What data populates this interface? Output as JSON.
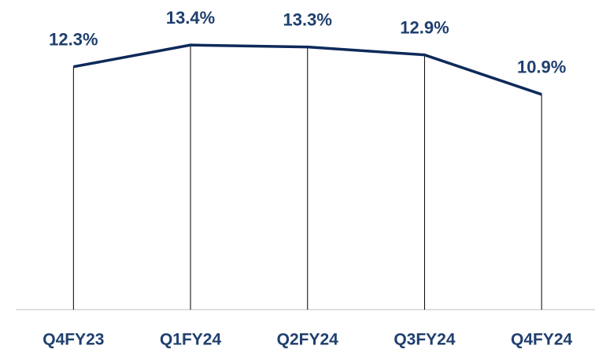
{
  "chart_data": {
    "type": "line",
    "categories": [
      "Q4FY23",
      "Q1FY24",
      "Q2FY24",
      "Q3FY24",
      "Q4FY24"
    ],
    "values": [
      12.3,
      13.4,
      13.3,
      12.9,
      10.9
    ],
    "value_labels": [
      "12.3%",
      "13.4%",
      "13.3%",
      "12.9%",
      "10.9%"
    ],
    "color": "#0e2a5a",
    "ylim": [
      0,
      15.6
    ]
  }
}
